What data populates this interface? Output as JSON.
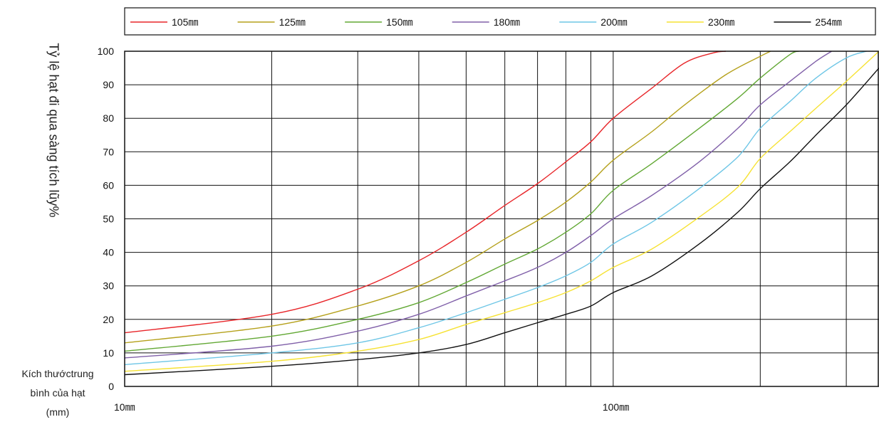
{
  "chart_data": {
    "type": "line",
    "title": "",
    "ylabel": "Tỷ lệ hạt đi qua sàng tích lũy%",
    "xlabel_lines": [
      "Kích thướctrung",
      "bình của hạt",
      "(mm)"
    ],
    "x_scale": "log",
    "xlim": [
      10,
      350
    ],
    "ylim": [
      0,
      100
    ],
    "x_ticks": [
      {
        "value": 10,
        "label": "10㎜"
      },
      {
        "value": 100,
        "label": "100㎜"
      }
    ],
    "x_gridlines": [
      10,
      20,
      30,
      40,
      50,
      60,
      70,
      80,
      90,
      100,
      200,
      300
    ],
    "y_ticks": [
      0,
      10,
      20,
      30,
      40,
      50,
      60,
      70,
      80,
      90,
      100
    ],
    "grid": true,
    "legend_position": "top",
    "series": [
      {
        "name": "105㎜",
        "color": "#e8262a",
        "points": [
          [
            10,
            16
          ],
          [
            20,
            21.5
          ],
          [
            30,
            29
          ],
          [
            40,
            37.5
          ],
          [
            50,
            46
          ],
          [
            60,
            54
          ],
          [
            70,
            60.5
          ],
          [
            80,
            67
          ],
          [
            90,
            73
          ],
          [
            100,
            80
          ],
          [
            120,
            89
          ],
          [
            140,
            96.5
          ],
          [
            160,
            99.5
          ],
          [
            170,
            100
          ]
        ]
      },
      {
        "name": "125㎜",
        "color": "#b5a11c",
        "points": [
          [
            10,
            13
          ],
          [
            20,
            18
          ],
          [
            30,
            24
          ],
          [
            40,
            30
          ],
          [
            50,
            37
          ],
          [
            60,
            44
          ],
          [
            70,
            49.5
          ],
          [
            80,
            55
          ],
          [
            90,
            61
          ],
          [
            100,
            67.5
          ],
          [
            120,
            76
          ],
          [
            140,
            84
          ],
          [
            170,
            93
          ],
          [
            200,
            98.5
          ],
          [
            210,
            100
          ]
        ]
      },
      {
        "name": "150㎜",
        "color": "#62a834",
        "points": [
          [
            10,
            10.5
          ],
          [
            20,
            15
          ],
          [
            30,
            20
          ],
          [
            40,
            25
          ],
          [
            50,
            31
          ],
          [
            60,
            36.5
          ],
          [
            70,
            41
          ],
          [
            80,
            46
          ],
          [
            90,
            51.5
          ],
          [
            100,
            58.5
          ],
          [
            120,
            66.5
          ],
          [
            150,
            77
          ],
          [
            180,
            86
          ],
          [
            200,
            92
          ],
          [
            230,
            99
          ],
          [
            240,
            100
          ]
        ]
      },
      {
        "name": "180㎜",
        "color": "#8060a9",
        "points": [
          [
            10,
            8.5
          ],
          [
            20,
            12
          ],
          [
            30,
            16.5
          ],
          [
            40,
            21.5
          ],
          [
            50,
            27
          ],
          [
            60,
            31.5
          ],
          [
            70,
            35.5
          ],
          [
            80,
            40
          ],
          [
            90,
            45
          ],
          [
            100,
            50
          ],
          [
            120,
            57
          ],
          [
            150,
            67
          ],
          [
            180,
            77
          ],
          [
            200,
            84
          ],
          [
            230,
            91
          ],
          [
            260,
            97
          ],
          [
            280,
            100
          ]
        ]
      },
      {
        "name": "200㎜",
        "color": "#6ec6e6",
        "points": [
          [
            10,
            6.5
          ],
          [
            20,
            10
          ],
          [
            30,
            13
          ],
          [
            40,
            17.5
          ],
          [
            50,
            22
          ],
          [
            60,
            26
          ],
          [
            70,
            29.5
          ],
          [
            80,
            33
          ],
          [
            90,
            37
          ],
          [
            100,
            42.5
          ],
          [
            120,
            49
          ],
          [
            150,
            59
          ],
          [
            180,
            68.5
          ],
          [
            200,
            77
          ],
          [
            230,
            85
          ],
          [
            260,
            92
          ],
          [
            300,
            98
          ],
          [
            330,
            100
          ]
        ]
      },
      {
        "name": "230㎜",
        "color": "#f6e233",
        "points": [
          [
            10,
            4.5
          ],
          [
            20,
            7.5
          ],
          [
            30,
            10.5
          ],
          [
            40,
            14
          ],
          [
            50,
            18.5
          ],
          [
            60,
            22
          ],
          [
            70,
            25
          ],
          [
            80,
            28
          ],
          [
            90,
            31.5
          ],
          [
            100,
            35.5
          ],
          [
            120,
            41
          ],
          [
            150,
            50.5
          ],
          [
            180,
            59.5
          ],
          [
            200,
            68
          ],
          [
            230,
            76
          ],
          [
            260,
            83
          ],
          [
            300,
            91
          ],
          [
            350,
            100
          ]
        ]
      },
      {
        "name": "254㎜",
        "color": "#111111",
        "points": [
          [
            10,
            3.5
          ],
          [
            20,
            6
          ],
          [
            30,
            8
          ],
          [
            40,
            10
          ],
          [
            50,
            12.5
          ],
          [
            60,
            16
          ],
          [
            70,
            19
          ],
          [
            80,
            21.5
          ],
          [
            90,
            24
          ],
          [
            100,
            28
          ],
          [
            120,
            33
          ],
          [
            150,
            42.5
          ],
          [
            180,
            52
          ],
          [
            200,
            59
          ],
          [
            230,
            67
          ],
          [
            260,
            75
          ],
          [
            300,
            84
          ],
          [
            350,
            95
          ]
        ]
      }
    ]
  }
}
